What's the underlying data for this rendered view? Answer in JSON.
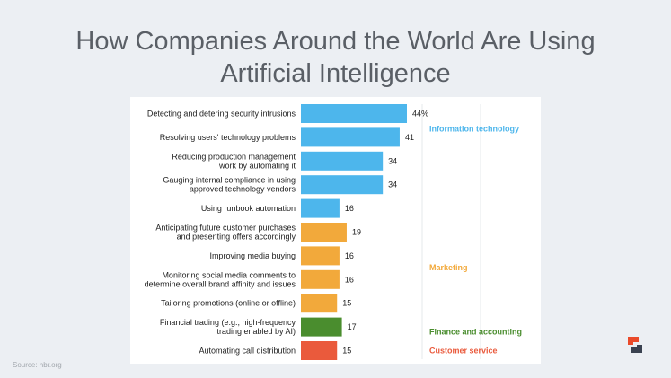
{
  "title_line1": "How Companies Around the World Are Using",
  "title_line2": "Artificial Intelligence",
  "source": "Source:  hbr.org",
  "chart_data": {
    "type": "bar",
    "orientation": "horizontal",
    "categories": [
      [
        "Detecting and detering security intrusions"
      ],
      [
        "Resolving users' technology problems"
      ],
      [
        "Reducing production management",
        "work by automating it"
      ],
      [
        "Gauging internal compliance in using",
        "approved technology vendors"
      ],
      [
        "Using runbook automation"
      ],
      [
        "Anticipating future customer purchases",
        "and presenting offers accordingly"
      ],
      [
        "Improving media buying"
      ],
      [
        "Monitoring social media comments to",
        "determine overall brand affinity and issues"
      ],
      [
        "Tailoring promotions (online or offline)"
      ],
      [
        "Financial trading (e.g., high-frequency",
        "trading enabled by AI)"
      ],
      [
        "Automating call distribution"
      ]
    ],
    "values": [
      44,
      41,
      34,
      34,
      16,
      19,
      16,
      16,
      15,
      17,
      15
    ],
    "value_labels": [
      "44%",
      "41",
      "34",
      "34",
      "16",
      "19",
      "16",
      "16",
      "15",
      "17",
      "15"
    ],
    "groups": [
      "it",
      "it",
      "it",
      "it",
      "it",
      "mk",
      "mk",
      "mk",
      "mk",
      "fa",
      "cs"
    ],
    "group_info": {
      "it": {
        "label": "Information technology",
        "color": "#4db6ec"
      },
      "mk": {
        "label": "Marketing",
        "color": "#f2a93b"
      },
      "fa": {
        "label": "Finance and accounting",
        "color": "#4a8d2e"
      },
      "cs": {
        "label": "Customer service",
        "color": "#ea5a3c"
      }
    },
    "xlim": [
      0,
      44
    ]
  }
}
